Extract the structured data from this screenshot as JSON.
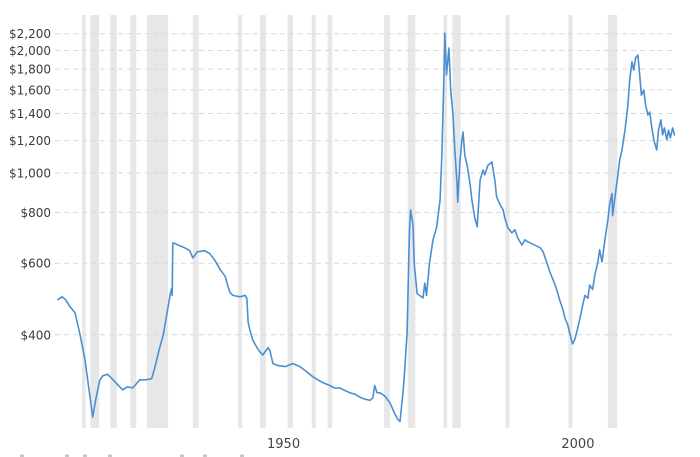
{
  "chart_data": {
    "type": "line",
    "title": "",
    "xlabel": "",
    "ylabel": "",
    "legend": null,
    "grid": "horizontal-dashed",
    "x_axis": {
      "range": [
        1914.0,
        2019.3
      ],
      "tick_values": [
        1950,
        2000
      ],
      "tick_labels": [
        "1950",
        "2000"
      ]
    },
    "y_axis": {
      "scale": "log",
      "range": [
        236,
        2445
      ],
      "tick_values": [
        400,
        600,
        800,
        1000,
        1200,
        1400,
        1600,
        1800,
        2000,
        2200
      ],
      "tick_labels": [
        "$400",
        "$600",
        "$800",
        "$1,000",
        "$1,200",
        "$1,400",
        "$1,600",
        "$1,800",
        "$2,000",
        "$2,200"
      ]
    },
    "recession_bands": [
      [
        1918.6,
        1919.2
      ],
      [
        1920.0,
        1921.5
      ],
      [
        1923.4,
        1924.5
      ],
      [
        1926.8,
        1927.8
      ],
      [
        1929.6,
        1933.2
      ],
      [
        1937.4,
        1938.4
      ],
      [
        1945.1,
        1945.8
      ],
      [
        1948.8,
        1949.8
      ],
      [
        1953.5,
        1954.4
      ],
      [
        1957.6,
        1958.3
      ],
      [
        1960.3,
        1961.1
      ],
      [
        1969.9,
        1970.9
      ],
      [
        1973.9,
        1975.2
      ],
      [
        1980.0,
        1980.6
      ],
      [
        1981.5,
        1982.9
      ],
      [
        1990.5,
        1991.2
      ],
      [
        2001.2,
        2001.9
      ],
      [
        2007.9,
        2009.5
      ]
    ],
    "series": [
      {
        "name": "gold_price_usd_per_oz",
        "color": "#4a8fd2",
        "points": [
          [
            1914.5,
            488
          ],
          [
            1915.2,
            496
          ],
          [
            1915.8,
            488
          ],
          [
            1916.5,
            470
          ],
          [
            1917.4,
            453
          ],
          [
            1918.2,
            404
          ],
          [
            1919.1,
            347
          ],
          [
            1919.9,
            285
          ],
          [
            1920.4,
            251
          ],
          [
            1920.9,
            276
          ],
          [
            1921.6,
            309
          ],
          [
            1922.1,
            317
          ],
          [
            1922.9,
            320
          ],
          [
            1923.8,
            311
          ],
          [
            1924.6,
            302
          ],
          [
            1925.5,
            293
          ],
          [
            1926.3,
            298
          ],
          [
            1927.2,
            296
          ],
          [
            1928.4,
            310
          ],
          [
            1929.4,
            310
          ],
          [
            1930.4,
            312
          ],
          [
            1930.9,
            330
          ],
          [
            1931.7,
            368
          ],
          [
            1932.4,
            400
          ],
          [
            1933.1,
            460
          ],
          [
            1933.6,
            506
          ],
          [
            1933.8,
            520
          ],
          [
            1933.9,
            500
          ],
          [
            1934.0,
            673
          ],
          [
            1934.3,
            671
          ],
          [
            1935.2,
            662
          ],
          [
            1936.0,
            655
          ],
          [
            1936.9,
            644
          ],
          [
            1937.4,
            618
          ],
          [
            1938.2,
            640
          ],
          [
            1939.4,
            644
          ],
          [
            1940.3,
            633
          ],
          [
            1941.2,
            608
          ],
          [
            1942.0,
            580
          ],
          [
            1942.9,
            557
          ],
          [
            1943.4,
            525
          ],
          [
            1943.7,
            509
          ],
          [
            1944.2,
            500
          ],
          [
            1945.4,
            496
          ],
          [
            1946.3,
            500
          ],
          [
            1946.6,
            490
          ],
          [
            1946.8,
            430
          ],
          [
            1947.1,
            411
          ],
          [
            1947.6,
            388
          ],
          [
            1948.3,
            372
          ],
          [
            1948.8,
            363
          ],
          [
            1949.3,
            357
          ],
          [
            1950.2,
            372
          ],
          [
            1950.5,
            366
          ],
          [
            1951.0,
            340
          ],
          [
            1951.9,
            336
          ],
          [
            1953.1,
            334
          ],
          [
            1954.4,
            340
          ],
          [
            1955.6,
            334
          ],
          [
            1956.8,
            324
          ],
          [
            1957.6,
            317
          ],
          [
            1958.5,
            311
          ],
          [
            1959.3,
            306
          ],
          [
            1960.7,
            300
          ],
          [
            1961.5,
            296
          ],
          [
            1962.4,
            296
          ],
          [
            1963.2,
            292
          ],
          [
            1964.1,
            288
          ],
          [
            1964.9,
            286
          ],
          [
            1965.8,
            281
          ],
          [
            1966.6,
            278
          ],
          [
            1967.5,
            276
          ],
          [
            1968.0,
            280
          ],
          [
            1968.3,
            300
          ],
          [
            1968.7,
            288
          ],
          [
            1969.2,
            288
          ],
          [
            1970.0,
            283
          ],
          [
            1970.9,
            272
          ],
          [
            1971.7,
            256
          ],
          [
            1972.2,
            248
          ],
          [
            1972.6,
            245
          ],
          [
            1973.1,
            288
          ],
          [
            1973.4,
            328
          ],
          [
            1973.8,
            405
          ],
          [
            1974.0,
            546
          ],
          [
            1974.2,
            724
          ],
          [
            1974.4,
            811
          ],
          [
            1974.8,
            745
          ],
          [
            1975.0,
            600
          ],
          [
            1975.5,
            505
          ],
          [
            1976.5,
            493
          ],
          [
            1976.8,
            536
          ],
          [
            1977.1,
            500
          ],
          [
            1977.6,
            600
          ],
          [
            1978.2,
            685
          ],
          [
            1978.8,
            733
          ],
          [
            1979.4,
            858
          ],
          [
            1979.7,
            1100
          ],
          [
            1980.0,
            1600
          ],
          [
            1980.2,
            2206
          ],
          [
            1980.5,
            1742
          ],
          [
            1980.9,
            2028
          ],
          [
            1981.2,
            1598
          ],
          [
            1981.6,
            1388
          ],
          [
            1981.9,
            1139
          ],
          [
            1982.3,
            938
          ],
          [
            1982.4,
            848
          ],
          [
            1982.8,
            1076
          ],
          [
            1983.1,
            1205
          ],
          [
            1983.3,
            1260
          ],
          [
            1983.6,
            1105
          ],
          [
            1984.0,
            1043
          ],
          [
            1984.5,
            938
          ],
          [
            1984.8,
            858
          ],
          [
            1985.3,
            775
          ],
          [
            1985.7,
            737
          ],
          [
            1986.2,
            960
          ],
          [
            1986.7,
            1017
          ],
          [
            1987.0,
            989
          ],
          [
            1987.5,
            1043
          ],
          [
            1988.2,
            1064
          ],
          [
            1988.7,
            960
          ],
          [
            1989.0,
            873
          ],
          [
            1989.6,
            835
          ],
          [
            1990.1,
            811
          ],
          [
            1990.4,
            775
          ],
          [
            1990.9,
            733
          ],
          [
            1991.6,
            712
          ],
          [
            1992.1,
            725
          ],
          [
            1992.6,
            692
          ],
          [
            1993.3,
            665
          ],
          [
            1993.8,
            685
          ],
          [
            1994.3,
            677
          ],
          [
            1995.0,
            670
          ],
          [
            1995.7,
            662
          ],
          [
            1996.4,
            655
          ],
          [
            1996.9,
            640
          ],
          [
            1997.5,
            604
          ],
          [
            1998.1,
            568
          ],
          [
            1998.6,
            546
          ],
          [
            1999.2,
            517
          ],
          [
            1999.7,
            488
          ],
          [
            2000.3,
            460
          ],
          [
            2000.6,
            440
          ],
          [
            2001.1,
            423
          ],
          [
            2001.4,
            404
          ],
          [
            2001.9,
            380
          ],
          [
            2002.3,
            390
          ],
          [
            2002.6,
            406
          ],
          [
            2003.1,
            435
          ],
          [
            2003.6,
            472
          ],
          [
            2004.0,
            500
          ],
          [
            2004.5,
            492
          ],
          [
            2004.8,
            530
          ],
          [
            2005.3,
            517
          ],
          [
            2005.7,
            562
          ],
          [
            2006.2,
            604
          ],
          [
            2006.5,
            647
          ],
          [
            2006.9,
            604
          ],
          [
            2007.4,
            685
          ],
          [
            2007.9,
            767
          ],
          [
            2008.2,
            835
          ],
          [
            2008.6,
            890
          ],
          [
            2008.7,
            785
          ],
          [
            2009.1,
            870
          ],
          [
            2009.6,
            989
          ],
          [
            2009.9,
            1076
          ],
          [
            2010.3,
            1139
          ],
          [
            2010.8,
            1275
          ],
          [
            2011.3,
            1469
          ],
          [
            2011.6,
            1693
          ],
          [
            2012.0,
            1875
          ],
          [
            2012.3,
            1790
          ],
          [
            2012.6,
            1917
          ],
          [
            2013.0,
            1950
          ],
          [
            2013.3,
            1742
          ],
          [
            2013.6,
            1553
          ],
          [
            2014.0,
            1598
          ],
          [
            2014.3,
            1469
          ],
          [
            2014.7,
            1388
          ],
          [
            2015.0,
            1412
          ],
          [
            2015.3,
            1312
          ],
          [
            2015.7,
            1205
          ],
          [
            2016.2,
            1139
          ],
          [
            2016.5,
            1275
          ],
          [
            2016.9,
            1350
          ],
          [
            2017.2,
            1240
          ],
          [
            2017.5,
            1290
          ],
          [
            2017.9,
            1205
          ],
          [
            2018.2,
            1275
          ],
          [
            2018.5,
            1219
          ],
          [
            2018.9,
            1290
          ],
          [
            2019.2,
            1240
          ]
        ]
      }
    ],
    "colors": {
      "line": "#4a8fd2",
      "recession_band": "#e7e7e7",
      "gridline": "#d9d9d9",
      "y_tick_label": "#3c3c3c",
      "x_tick_label": "#444444",
      "background": "#ffffff"
    }
  },
  "cropped_fragments": {
    "note_color": "#999999",
    "x_positions": [
      20,
      65,
      83,
      108,
      180,
      203,
      240
    ]
  }
}
